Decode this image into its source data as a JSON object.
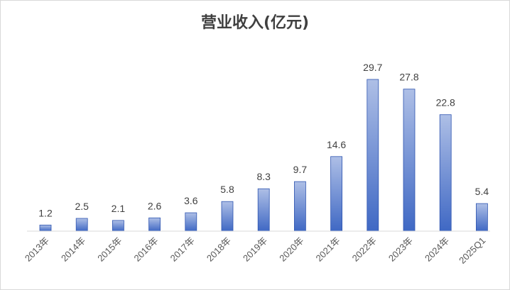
{
  "chart_data": {
    "type": "bar",
    "title": "营业收入(亿元)",
    "categories": [
      "2013年",
      "2014年",
      "2015年",
      "2016年",
      "2017年",
      "2018年",
      "2019年",
      "2020年",
      "2021年",
      "2022年",
      "2023年",
      "2024年",
      "2025Q1"
    ],
    "values": [
      1.2,
      2.5,
      2.1,
      2.6,
      3.6,
      5.8,
      8.3,
      9.7,
      14.6,
      29.7,
      27.8,
      22.8,
      5.4
    ],
    "ylim": [
      0,
      30
    ],
    "grid": false,
    "bar_color_top": "#aebfe6",
    "bar_color_bottom": "#3f68c4",
    "bar_edge": "#2f55b0"
  }
}
